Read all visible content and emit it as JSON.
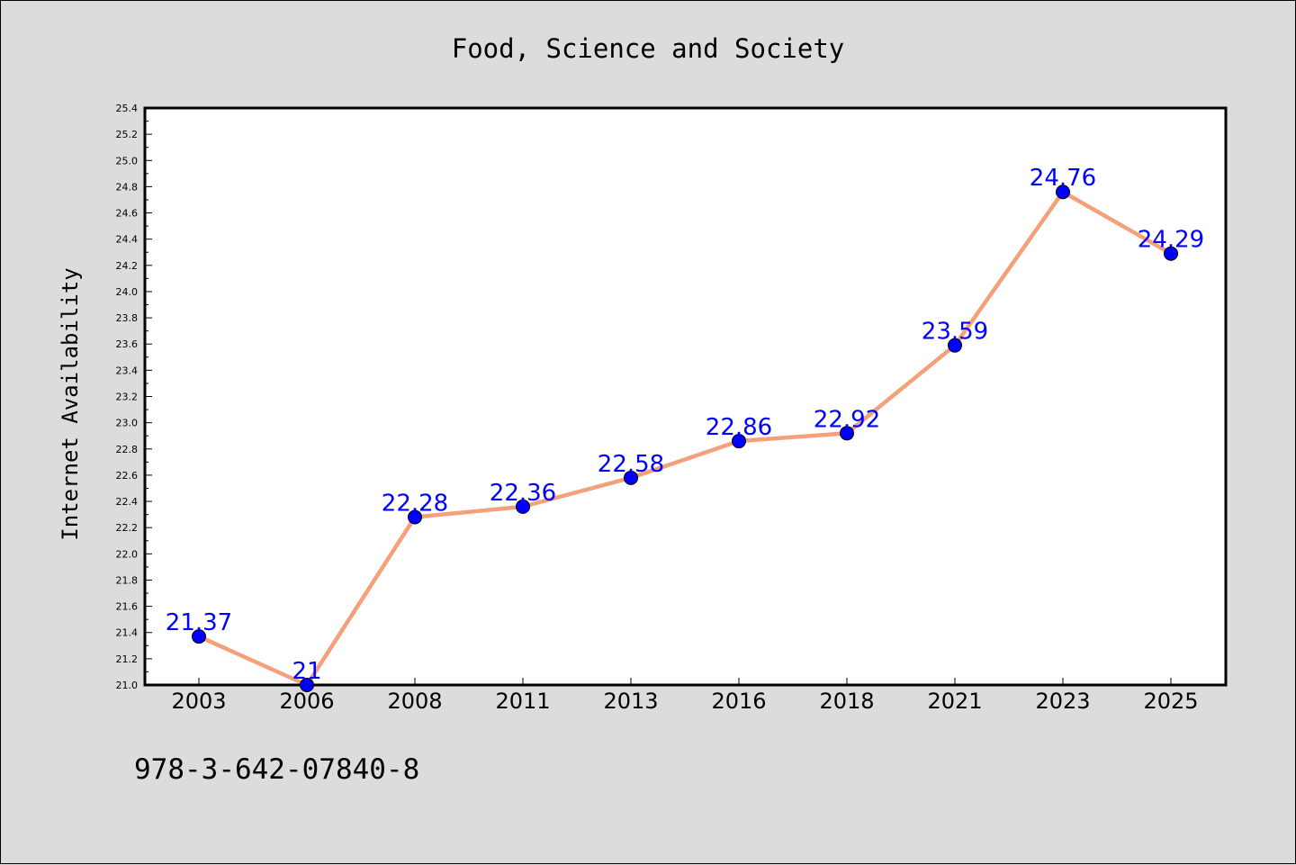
{
  "colors": {
    "background": "#dcdcdc",
    "plot_background": "#ffffff",
    "line": "#f4a07a",
    "marker": "#0000ff",
    "data_label": "#0000ff"
  },
  "chart_data": {
    "type": "line",
    "title": "Food, Science and Society",
    "xlabel": "",
    "ylabel": "Internet Availability",
    "categories": [
      "2003",
      "2006",
      "2008",
      "2011",
      "2013",
      "2016",
      "2018",
      "2021",
      "2023",
      "2025"
    ],
    "series": [
      {
        "values": [
          21.37,
          21.0,
          22.28,
          22.36,
          22.58,
          22.86,
          22.92,
          23.59,
          24.76,
          24.29
        ],
        "labels": [
          "21.37",
          "21",
          "22.28",
          "22.36",
          "22.58",
          "22.86",
          "22.92",
          "23.59",
          "24.76",
          "24.29"
        ]
      }
    ],
    "ylim": [
      21.0,
      25.4
    ],
    "yticks": [
      "21.0",
      "21.2",
      "21.4",
      "21.6",
      "21.8",
      "22.0",
      "22.2",
      "22.4",
      "22.6",
      "22.8",
      "23.0",
      "23.2",
      "23.4",
      "23.6",
      "23.8",
      "24.0",
      "24.2",
      "24.4",
      "24.6",
      "24.8",
      "25.0",
      "25.2",
      "25.4"
    ],
    "grid": false,
    "legend": "none"
  },
  "footer": {
    "isbn": "978-3-642-07840-8"
  }
}
